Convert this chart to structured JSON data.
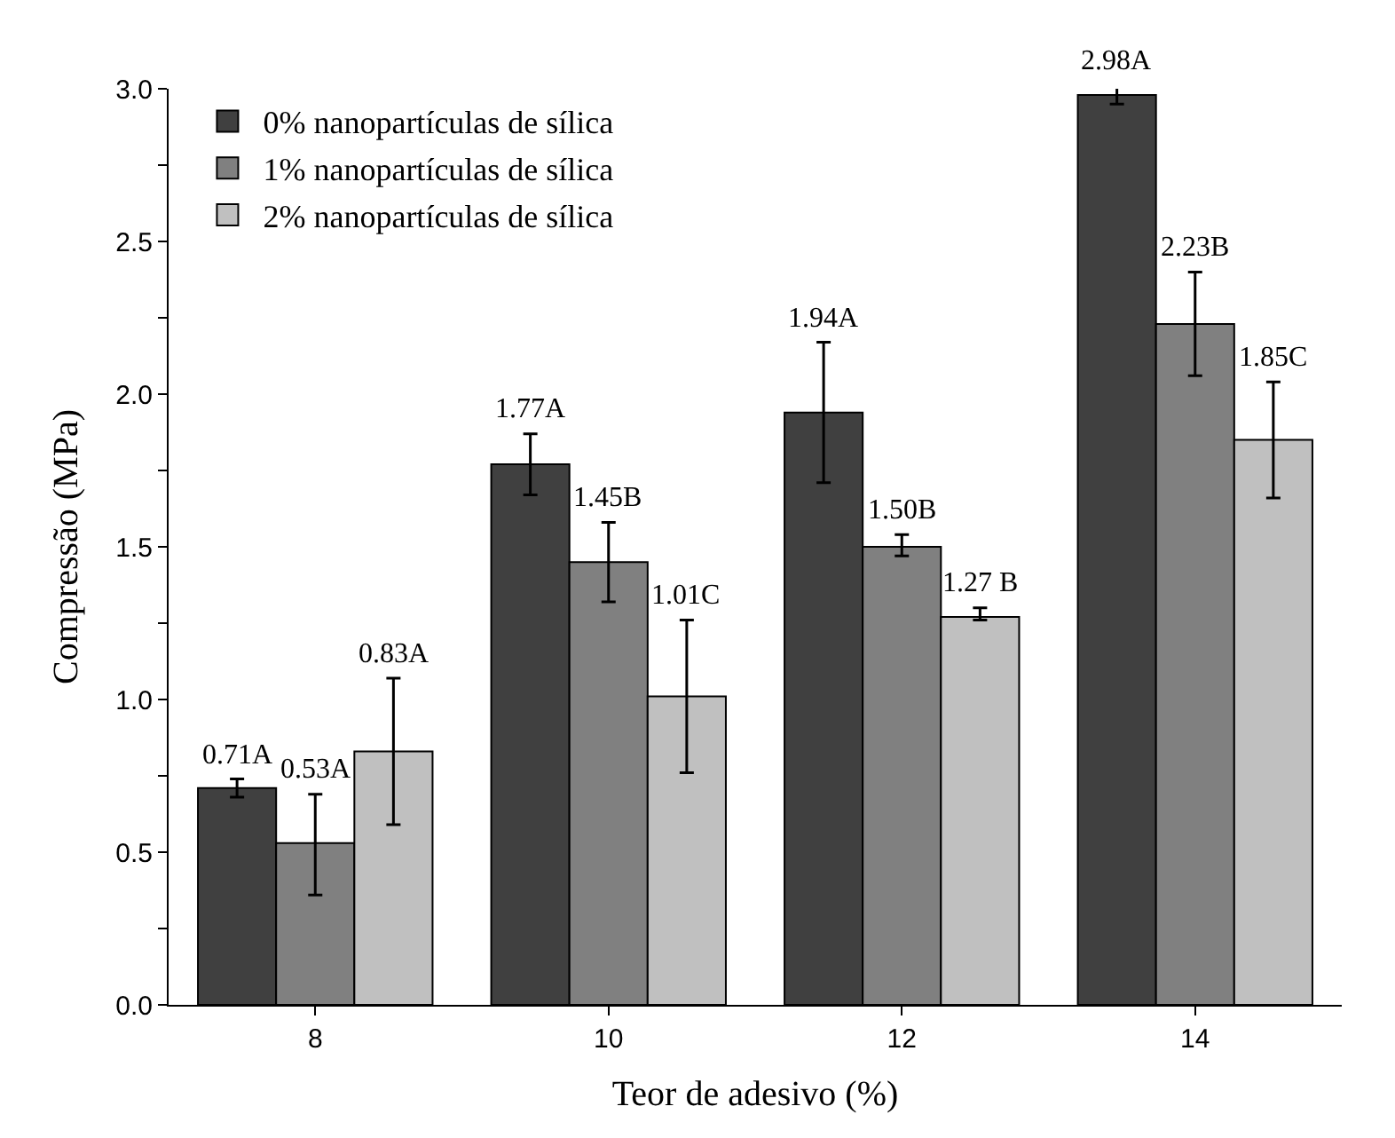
{
  "chart_data": {
    "type": "bar",
    "xlabel": "Teor de adesivo (%)",
    "ylabel": "Compressão (MPa)",
    "categories": [
      "8",
      "10",
      "12",
      "14"
    ],
    "series": [
      {
        "name": "0% nanopartículas de sílica",
        "color": "#404040",
        "values": [
          0.71,
          1.77,
          1.94,
          2.98
        ],
        "errors": [
          [
            0.68,
            0.74
          ],
          [
            1.67,
            1.87
          ],
          [
            1.71,
            2.17
          ],
          [
            2.95,
            3.01
          ]
        ],
        "value_labels": [
          "0.71A",
          "1.77A",
          "1.94A",
          "2.98A"
        ]
      },
      {
        "name": "1% nanopartículas de sílica",
        "color": "#808080",
        "values": [
          0.53,
          1.45,
          1.5,
          2.23
        ],
        "errors": [
          [
            0.36,
            0.69
          ],
          [
            1.32,
            1.58
          ],
          [
            1.47,
            1.54
          ],
          [
            2.06,
            2.4
          ]
        ],
        "value_labels": [
          "0.53A",
          "1.45B",
          "1.50B",
          "2.23B"
        ]
      },
      {
        "name": "2% nanopartículas de sílica",
        "color": "#c0c0c0",
        "values": [
          0.83,
          1.01,
          1.27,
          1.85
        ],
        "errors": [
          [
            0.59,
            1.07
          ],
          [
            0.76,
            1.26
          ],
          [
            1.26,
            1.3
          ],
          [
            1.66,
            2.04
          ]
        ],
        "value_labels": [
          "0.83A",
          "1.01C",
          "1.27 B",
          "1.85C"
        ]
      }
    ],
    "ylim": [
      0,
      3.0
    ],
    "yticks": [
      {
        "value": 0,
        "label": "0.0"
      },
      {
        "value": 0.25,
        "label": null
      },
      {
        "value": 0.5,
        "label": "0.5"
      },
      {
        "value": 0.75,
        "label": null
      },
      {
        "value": 1.0,
        "label": "1.0"
      },
      {
        "value": 1.25,
        "label": null
      },
      {
        "value": 1.5,
        "label": "1.5"
      },
      {
        "value": 1.75,
        "label": null
      },
      {
        "value": 2.0,
        "label": "2.0"
      },
      {
        "value": 2.25,
        "label": null
      },
      {
        "value": 2.5,
        "label": "2.5"
      },
      {
        "value": 2.75,
        "label": null
      },
      {
        "value": 3.0,
        "label": "3.0"
      }
    ],
    "legend": "top left"
  }
}
